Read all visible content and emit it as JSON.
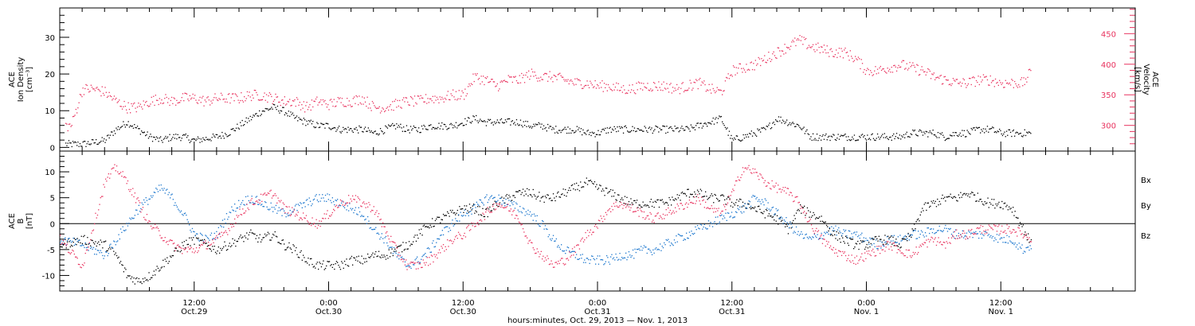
{
  "colors": {
    "black": "#000000",
    "pink": "#e8325e",
    "blue": "#1874cd"
  },
  "labels": {
    "density_top": "ACE",
    "density_mid": "Ion Density",
    "density_unit": "[cm⁻³]",
    "velocity_top": "ACE",
    "velocity_mid": "Velocity",
    "velocity_unit": "[km/s]",
    "b_top": "ACE",
    "b_mid": "B",
    "b_unit": "[nT]",
    "bx": "Bx",
    "by": "By",
    "bz": "Bz",
    "x_axis_title": "hours:minutes, Oct. 29, 2013 — Nov. 1, 2013"
  },
  "chart_data": [
    {
      "type": "scatter",
      "panel": "plasma",
      "xlim_hours": [
        0,
        96
      ],
      "x_ticks": [
        {
          "h": 12,
          "time": "12:00",
          "date": "Oct.29"
        },
        {
          "h": 24,
          "time": "0:00",
          "date": "Oct.30"
        },
        {
          "h": 36,
          "time": "12:00",
          "date": "Oct.30"
        },
        {
          "h": 48,
          "time": "0:00",
          "date": "Oct.31"
        },
        {
          "h": 60,
          "time": "12:00",
          "date": "Oct.31"
        },
        {
          "h": 72,
          "time": "0:00",
          "date": "Nov. 1"
        },
        {
          "h": 84,
          "time": "12:00",
          "date": "Nov. 1"
        }
      ],
      "left_axis": {
        "label": "ACE Ion Density [cm⁻³]",
        "ylim": [
          -1,
          38
        ],
        "ticks": [
          0,
          10,
          20,
          30
        ]
      },
      "right_axis": {
        "label": "ACE Velocity [km/s]",
        "ylim": [
          258,
          492
        ],
        "ticks": [
          300,
          350,
          400,
          450
        ]
      },
      "series": [
        {
          "name": "Ion Density",
          "axis": "left",
          "color": "#000000",
          "x": [
            0.5,
            2,
            3,
            4,
            5,
            6,
            7,
            8,
            9,
            10,
            11,
            12,
            13,
            14,
            15,
            16,
            17,
            18,
            19,
            20,
            21,
            22,
            23,
            24,
            25,
            26,
            27,
            28,
            29,
            30,
            31,
            32,
            33,
            34,
            35,
            36,
            37,
            38,
            39,
            40,
            41,
            42,
            43,
            44,
            45,
            46,
            47,
            48,
            49,
            50,
            51,
            52,
            53,
            54,
            55,
            56,
            57,
            58,
            59,
            60,
            61,
            62,
            63,
            64,
            65,
            66,
            67,
            68,
            69,
            70,
            71,
            72,
            73,
            74,
            75,
            76,
            77,
            78,
            79,
            80,
            81,
            82,
            83,
            84,
            85,
            86,
            86.7
          ],
          "y": [
            1,
            1,
            1.5,
            2,
            5,
            7,
            5,
            3,
            2,
            3,
            3,
            2,
            2.5,
            3,
            4,
            6,
            8,
            10,
            11,
            10,
            8,
            7,
            6,
            6,
            5,
            5,
            5,
            4,
            5,
            6,
            5,
            5,
            6,
            6,
            6,
            7,
            8,
            7,
            7,
            7,
            7,
            6,
            6,
            5,
            5,
            5,
            4,
            4,
            5,
            5,
            5,
            5,
            5,
            5,
            5,
            5,
            6,
            7,
            8,
            2,
            3,
            4,
            5,
            8,
            7,
            6,
            3,
            3,
            3,
            3,
            3,
            3,
            3,
            3,
            3,
            4,
            4,
            4,
            3,
            4,
            4,
            5,
            5,
            4,
            4,
            4,
            4
          ]
        },
        {
          "name": "Velocity",
          "axis": "right",
          "color": "#e8325e",
          "x": [
            0.5,
            1,
            2,
            3,
            4,
            5,
            6,
            7,
            8,
            9,
            10,
            11,
            12,
            13,
            14,
            15,
            16,
            17,
            18,
            19,
            20,
            21,
            22,
            23,
            24,
            25,
            26,
            27,
            28,
            29,
            30,
            31,
            32,
            33,
            34,
            35,
            36,
            37,
            38,
            39,
            40,
            41,
            42,
            43,
            44,
            45,
            46,
            47,
            48,
            49,
            50,
            51,
            52,
            53,
            54,
            55,
            56,
            57,
            58,
            59,
            60,
            61,
            62,
            63,
            64,
            65,
            66,
            67,
            68,
            69,
            70,
            71,
            72,
            73,
            74,
            75,
            76,
            77,
            78,
            79,
            80,
            81,
            82,
            83,
            84,
            85,
            86,
            86.7
          ],
          "y": [
            300,
            300,
            360,
            360,
            355,
            340,
            330,
            330,
            340,
            345,
            340,
            345,
            345,
            340,
            345,
            345,
            345,
            350,
            350,
            345,
            340,
            340,
            330,
            340,
            335,
            340,
            340,
            345,
            330,
            330,
            335,
            340,
            340,
            345,
            345,
            350,
            350,
            380,
            375,
            365,
            375,
            375,
            385,
            380,
            380,
            375,
            370,
            370,
            365,
            365,
            360,
            360,
            365,
            365,
            365,
            360,
            365,
            370,
            360,
            355,
            390,
            395,
            400,
            410,
            420,
            430,
            440,
            430,
            425,
            420,
            420,
            410,
            390,
            390,
            395,
            400,
            395,
            390,
            380,
            375,
            370,
            370,
            375,
            375,
            370,
            370,
            370,
            390
          ]
        }
      ]
    },
    {
      "type": "scatter",
      "panel": "magnetic_field",
      "xlim_hours": [
        0,
        96
      ],
      "y_axis": {
        "label": "ACE B [nT]",
        "ylim": [
          -13,
          14
        ],
        "ticks": [
          -10,
          -5,
          0,
          5,
          10
        ]
      },
      "zero_line": true,
      "series": [
        {
          "name": "Bx",
          "color": "#000000",
          "x": [
            0,
            2,
            4,
            5,
            6,
            7,
            8,
            9,
            10,
            11,
            12,
            13,
            14,
            15,
            16,
            17,
            18,
            19,
            20,
            21,
            22,
            23,
            24,
            25,
            26,
            27,
            28,
            29,
            30,
            31,
            32,
            33,
            34,
            35,
            36,
            37,
            38,
            39,
            40,
            41,
            42,
            43,
            44,
            45,
            46,
            47,
            48,
            49,
            50,
            51,
            52,
            53,
            54,
            55,
            56,
            57,
            58,
            59,
            60,
            61,
            62,
            63,
            64,
            65,
            66,
            67,
            68,
            69,
            70,
            71,
            72,
            73,
            74,
            75,
            76,
            77,
            78,
            79,
            80,
            81,
            82,
            83,
            84,
            85,
            86,
            86.7
          ],
          "y": [
            -4,
            -3,
            -4,
            -6,
            -10,
            -11,
            -10,
            -8,
            -6,
            -4,
            -3,
            -4,
            -5,
            -4,
            -3,
            -2,
            -3,
            -2,
            -4,
            -5,
            -7,
            -8,
            -8,
            -8,
            -7,
            -7,
            -6,
            -6,
            -5,
            -4,
            -2,
            0,
            1,
            2,
            3,
            3,
            2,
            4,
            5,
            6,
            6,
            5,
            5,
            6,
            7,
            8,
            7,
            6,
            5,
            4,
            4,
            4,
            4,
            5,
            6,
            6,
            5,
            5,
            4,
            4,
            3,
            2,
            1,
            -1,
            3,
            2,
            1,
            -2,
            -3,
            -4,
            -4,
            -3,
            -3,
            -4,
            -2,
            3,
            4,
            5,
            5,
            6,
            5,
            4,
            4,
            3,
            -1,
            -4
          ]
        },
        {
          "name": "By",
          "color": "#1874cd",
          "x": [
            0,
            2,
            4,
            5,
            6,
            7,
            8,
            9,
            10,
            11,
            12,
            13,
            14,
            15,
            16,
            17,
            18,
            19,
            20,
            21,
            22,
            23,
            24,
            25,
            26,
            27,
            28,
            29,
            30,
            31,
            32,
            33,
            34,
            35,
            36,
            37,
            38,
            39,
            40,
            41,
            42,
            43,
            44,
            45,
            46,
            47,
            48,
            49,
            50,
            51,
            52,
            53,
            54,
            55,
            56,
            57,
            58,
            59,
            60,
            61,
            62,
            63,
            64,
            65,
            66,
            67,
            68,
            69,
            70,
            71,
            72,
            73,
            74,
            75,
            76,
            77,
            78,
            79,
            80,
            81,
            82,
            83,
            84,
            85,
            86,
            86.7
          ],
          "y": [
            -3,
            -4,
            -6,
            -3,
            0,
            3,
            5,
            7,
            5,
            2,
            -2,
            -3,
            -2,
            2,
            4,
            5,
            4,
            3,
            2,
            3,
            4,
            5,
            5,
            4,
            3,
            2,
            -1,
            -3,
            -6,
            -8,
            -7,
            -5,
            -2,
            0,
            2,
            3,
            5,
            5,
            4,
            3,
            2,
            0,
            -3,
            -5,
            -6,
            -7,
            -7,
            -7,
            -6,
            -6,
            -5,
            -5,
            -4,
            -3,
            -2,
            -1,
            0,
            1,
            2,
            3,
            5,
            4,
            2,
            0,
            -2,
            -3,
            -2,
            -1,
            -2,
            -2,
            -3,
            -4,
            -3,
            -3,
            -2,
            -2,
            -1,
            -1,
            -2,
            -2,
            -2,
            -2,
            -3,
            -3,
            -5,
            -4
          ]
        },
        {
          "name": "Bz",
          "color": "#e8325e",
          "x": [
            0,
            2,
            4,
            5,
            6,
            7,
            8,
            9,
            10,
            11,
            12,
            13,
            14,
            15,
            16,
            17,
            18,
            19,
            20,
            21,
            22,
            23,
            24,
            25,
            26,
            27,
            28,
            29,
            30,
            31,
            32,
            33,
            34,
            35,
            36,
            37,
            38,
            39,
            40,
            41,
            42,
            43,
            44,
            45,
            46,
            47,
            48,
            49,
            50,
            51,
            52,
            53,
            54,
            55,
            56,
            57,
            58,
            59,
            60,
            61,
            62,
            63,
            64,
            65,
            66,
            67,
            68,
            69,
            70,
            71,
            72,
            73,
            74,
            75,
            76,
            77,
            78,
            79,
            80,
            81,
            82,
            83,
            84,
            85,
            86,
            86.7
          ],
          "y": [
            -3,
            -8,
            8,
            11,
            8,
            4,
            0,
            -2,
            -4,
            -5,
            -5,
            -4,
            -3,
            -1,
            2,
            4,
            5,
            6,
            3,
            2,
            1,
            0,
            2,
            4,
            5,
            4,
            3,
            -1,
            -5,
            -8,
            -8,
            -7,
            -5,
            -3,
            -2,
            0,
            2,
            4,
            3,
            1,
            -4,
            -6,
            -8,
            -7,
            -5,
            -2,
            0,
            3,
            4,
            3,
            2,
            1,
            2,
            3,
            4,
            5,
            3,
            2,
            6,
            11,
            10,
            8,
            7,
            6,
            4,
            0,
            -3,
            -5,
            -6,
            -7,
            -6,
            -5,
            -4,
            -5,
            -6,
            -4,
            -3,
            -4,
            -2,
            -2,
            -1,
            -1,
            -1,
            -1,
            -2,
            -3
          ]
        }
      ]
    }
  ]
}
